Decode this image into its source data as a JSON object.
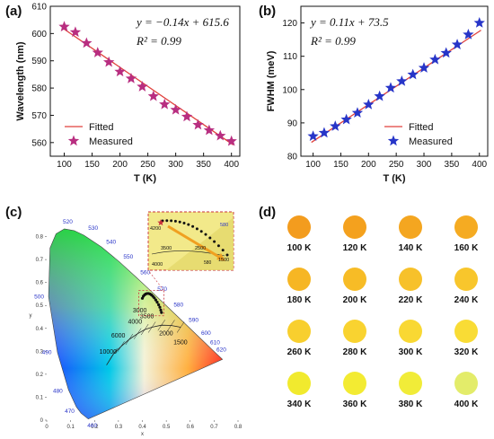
{
  "panel_labels": {
    "a": "(a)",
    "b": "(b)",
    "c": "(c)",
    "d": "(d)"
  },
  "chart_data": [
    {
      "type": "scatter",
      "panel": "(a)",
      "xlabel": "T (K)",
      "ylabel": "Wavelength (nm)",
      "xlim": [
        75,
        415
      ],
      "ylim": [
        555,
        610
      ],
      "x_ticks": [
        100,
        150,
        200,
        250,
        300,
        350,
        400
      ],
      "y_ticks": [
        560,
        570,
        580,
        590,
        600,
        610
      ],
      "equation": "y = −0.14x + 615.6",
      "r2": "R² = 0.99",
      "fit": {
        "slope": -0.14,
        "intercept": 615.6
      },
      "series": [
        {
          "name": "Fitted",
          "kind": "line",
          "color": "#e0413c"
        },
        {
          "name": "Measured",
          "kind": "marker",
          "marker": "star",
          "color": "#b82e80",
          "x": [
            100,
            120,
            140,
            160,
            180,
            200,
            220,
            240,
            260,
            280,
            300,
            320,
            340,
            360,
            380,
            400
          ],
          "y": [
            602.5,
            600.5,
            596.5,
            593,
            589.5,
            586,
            583.5,
            580.5,
            577,
            574,
            572,
            569.5,
            566.5,
            564.5,
            562.5,
            560.5
          ]
        }
      ],
      "legend": "bottom-left"
    },
    {
      "type": "scatter",
      "panel": "(b)",
      "xlabel": "T (K)",
      "ylabel": "FWHM (meV)",
      "xlim": [
        78,
        415
      ],
      "ylim": [
        80,
        125
      ],
      "x_ticks": [
        100,
        150,
        200,
        250,
        300,
        350,
        400
      ],
      "y_ticks": [
        80,
        90,
        100,
        110,
        120
      ],
      "equation": "y = 0.11x + 73.5",
      "r2": "R² = 0.99",
      "fit": {
        "slope": 0.11,
        "intercept": 73.5
      },
      "series": [
        {
          "name": "Fitted",
          "kind": "line",
          "color": "#e0413c"
        },
        {
          "name": "Measured",
          "kind": "marker",
          "marker": "star",
          "color": "#2735c8",
          "x": [
            100,
            120,
            140,
            160,
            180,
            200,
            220,
            240,
            260,
            280,
            300,
            320,
            340,
            360,
            380,
            400
          ],
          "y": [
            86,
            87,
            89,
            91,
            93,
            95.5,
            98,
            100.5,
            102.5,
            104.5,
            106.5,
            109,
            111,
            113.5,
            116.5,
            120
          ]
        }
      ],
      "legend": "bottom-right"
    },
    {
      "type": "scatter",
      "panel": "(c)",
      "xlabel": "x",
      "ylabel": "y",
      "xlim": [
        0,
        0.8
      ],
      "ylim": [
        0,
        0.9
      ],
      "x_ticks": [
        "0",
        "0.1",
        "0.2",
        "0.3",
        "0.4",
        "0.5",
        "0.6",
        "0.7",
        "0.8"
      ],
      "y_ticks": [
        "0",
        "0.1",
        "0.2",
        "0.3",
        "0.4",
        "0.5",
        "0.6",
        "0.7",
        "0.8"
      ],
      "wavelength_labels": [
        "460",
        "470",
        "480",
        "490",
        "500",
        "520",
        "530",
        "540",
        "550",
        "560",
        "570",
        "580",
        "590",
        "600",
        "610",
        "620"
      ],
      "cct_labels": [
        "1500",
        "2000",
        "3000",
        "3500",
        "4000",
        "6000",
        "10000"
      ],
      "inset_cct_labels": [
        "4200",
        "3500",
        "2500",
        "1500",
        "4000"
      ],
      "inset_wl_label": "580",
      "inset_trend_label": "580",
      "series": [
        {
          "name": "",
          "kind": "points",
          "color": "#111111",
          "x": [
            0.4,
            0.404,
            0.409,
            0.414,
            0.42,
            0.426,
            0.432,
            0.438,
            0.444,
            0.45,
            0.456,
            0.462,
            0.468,
            0.473,
            0.477,
            0.48
          ],
          "y": [
            0.531,
            0.54,
            0.546,
            0.55,
            0.552,
            0.552,
            0.55,
            0.546,
            0.54,
            0.533,
            0.524,
            0.514,
            0.503,
            0.492,
            0.48,
            0.469
          ]
        }
      ]
    }
  ],
  "color_swatches": [
    {
      "label": "100 K",
      "color": "#f39c1e"
    },
    {
      "label": "120 K",
      "color": "#f4a11e"
    },
    {
      "label": "140 K",
      "color": "#f4a620"
    },
    {
      "label": "160 K",
      "color": "#f5ab22"
    },
    {
      "label": "180 K",
      "color": "#f6b624"
    },
    {
      "label": "200 K",
      "color": "#f7bc26"
    },
    {
      "label": "220 K",
      "color": "#f7c12a"
    },
    {
      "label": "240 K",
      "color": "#f8c62c"
    },
    {
      "label": "260 K",
      "color": "#f8cf2e"
    },
    {
      "label": "280 K",
      "color": "#f9d330"
    },
    {
      "label": "300 K",
      "color": "#f9d833"
    },
    {
      "label": "320 K",
      "color": "#f9dc35"
    },
    {
      "label": "340 K",
      "color": "#f1ea2e"
    },
    {
      "label": "360 K",
      "color": "#f3eb32"
    },
    {
      "label": "380 K",
      "color": "#f1ec38"
    },
    {
      "label": "400 K",
      "color": "#e3ec6a"
    }
  ]
}
